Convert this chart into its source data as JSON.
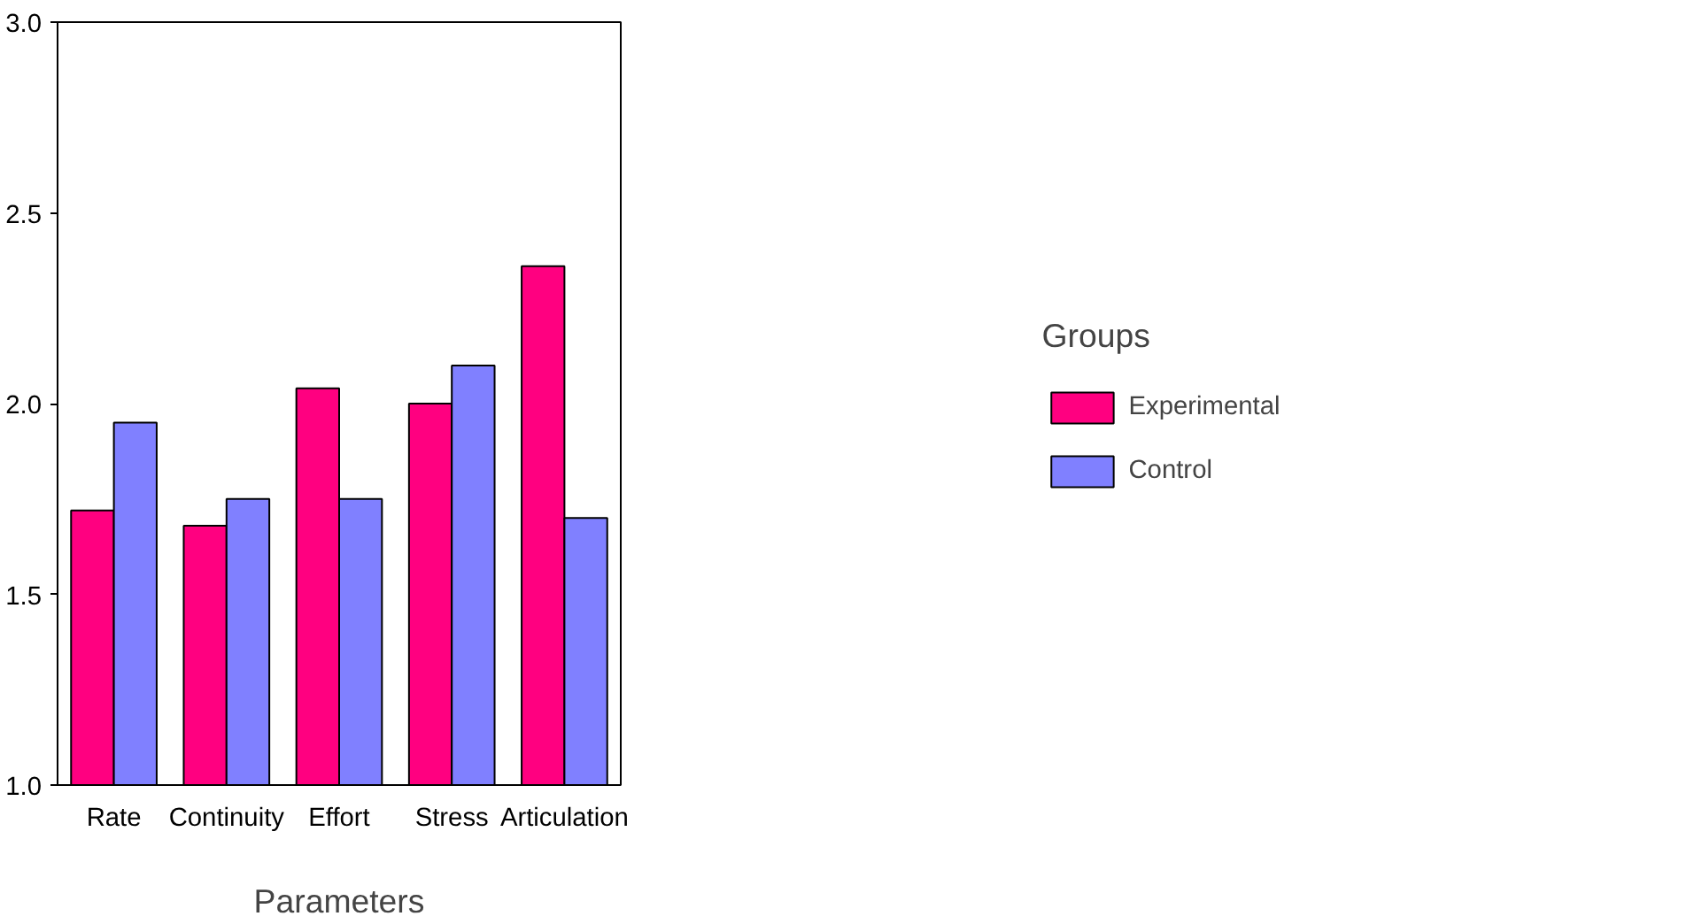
{
  "chart_data": {
    "type": "bar",
    "xlabel": "Parameters",
    "legend_title": "Groups",
    "categories": [
      "Rate",
      "Continuity",
      "Effort",
      "Stress",
      "Articulation"
    ],
    "series": [
      {
        "name": "Experimental",
        "color": "#ff0080",
        "values": [
          1.72,
          1.68,
          2.04,
          2.0,
          2.36
        ]
      },
      {
        "name": "Control",
        "color": "#8080ff",
        "values": [
          1.95,
          1.75,
          1.75,
          2.1,
          1.7
        ]
      }
    ],
    "ylim": [
      1.0,
      3.0
    ],
    "yticks": [
      {
        "value": 1.0,
        "label": "1.0"
      },
      {
        "value": 1.5,
        "label": "1.5"
      },
      {
        "value": 2.0,
        "label": "2.0"
      },
      {
        "value": 2.5,
        "label": "2.5"
      },
      {
        "value": 3.0,
        "label": "3.0"
      }
    ],
    "grid": false,
    "legend": "right"
  }
}
